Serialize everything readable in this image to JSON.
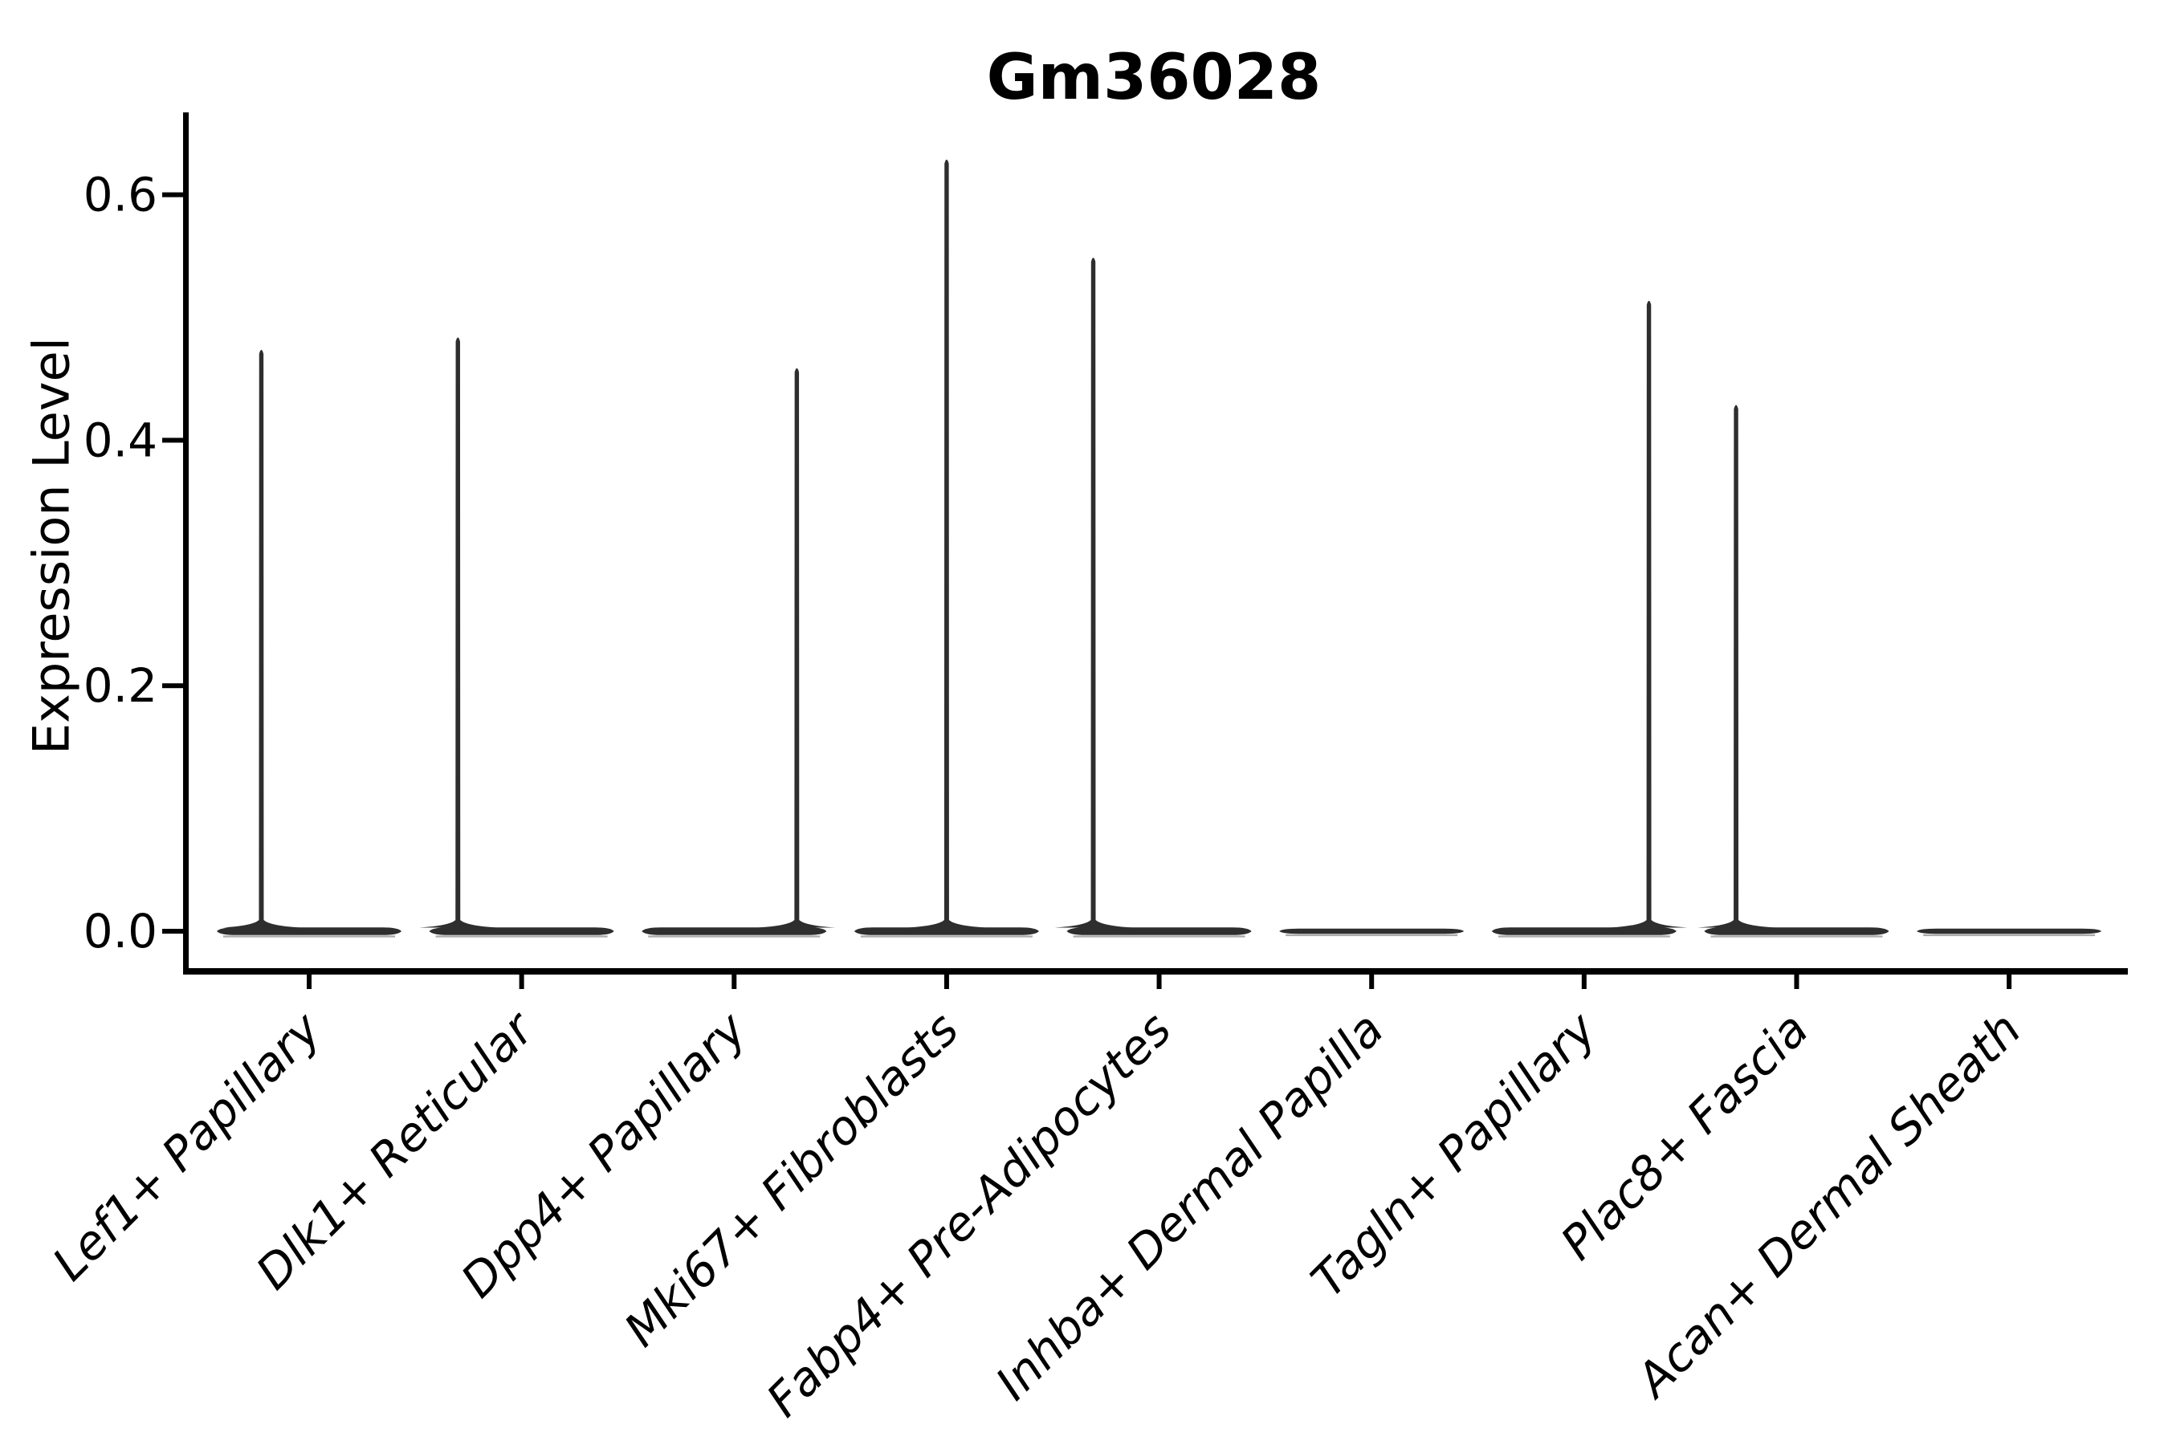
{
  "title": "Gm36028",
  "chart_data": {
    "type": "violin",
    "title": "Gm36028",
    "ylabel": "Expression Level",
    "xlabel": "",
    "yticks": [
      0.0,
      0.2,
      0.4,
      0.6
    ],
    "ylim": [
      -0.033,
      0.665
    ],
    "grid": false,
    "legend": null,
    "colors": {
      "violin": "#2e2e2e",
      "violin_underline": "#8f8f8f",
      "axis": "#000000",
      "text": "#000000"
    },
    "categories": [
      "Lef1+ Papillary",
      "Dlk1+ Reticular",
      "Dpp4+ Papillary",
      "Mki67+ Fibroblasts",
      "Fabp4+ Pre-Adipocytes",
      "Inhba+ Dermal Papilla",
      "Tagln+ Papillary",
      "Plac8+ Fascia",
      "Acan+ Dermal Sheath"
    ],
    "violins": [
      {
        "category": "Lef1+ Papillary",
        "max_expression": 0.475,
        "body_at_zero": true,
        "spike_offset_frac": -0.225
      },
      {
        "category": "Dlk1+ Reticular",
        "max_expression": 0.485,
        "body_at_zero": true,
        "spike_offset_frac": -0.3
      },
      {
        "category": "Dpp4+ Papillary",
        "max_expression": 0.46,
        "body_at_zero": true,
        "spike_offset_frac": 0.295
      },
      {
        "category": "Mki67+ Fibroblasts",
        "max_expression": 0.63,
        "body_at_zero": true,
        "spike_offset_frac": 0.0
      },
      {
        "category": "Fabp4+ Pre-Adipocytes",
        "max_expression": 0.55,
        "body_at_zero": true,
        "spike_offset_frac": -0.31
      },
      {
        "category": "Inhba+ Dermal Papilla",
        "max_expression": 0.0,
        "body_at_zero": true,
        "spike_offset_frac": null
      },
      {
        "category": "Tagln+ Papillary",
        "max_expression": 0.515,
        "body_at_zero": true,
        "spike_offset_frac": 0.305
      },
      {
        "category": "Plac8+ Fascia",
        "max_expression": 0.43,
        "body_at_zero": true,
        "spike_offset_frac": -0.285
      },
      {
        "category": "Acan+ Dermal Sheath",
        "max_expression": 0.0,
        "body_at_zero": true,
        "spike_offset_frac": null
      }
    ]
  }
}
